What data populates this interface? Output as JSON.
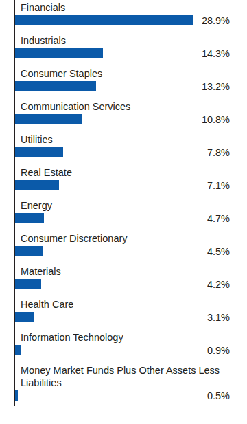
{
  "chart_data": {
    "type": "bar",
    "orientation": "horizontal",
    "categories": [
      "Financials",
      "Industrials",
      "Consumer Staples",
      "Communication Services",
      "Utilities",
      "Real Estate",
      "Energy",
      "Consumer Discretionary",
      "Materials",
      "Health Care",
      "Information Technology",
      "Money Market Funds Plus Other Assets Less Liabilities"
    ],
    "values": [
      28.9,
      14.3,
      13.2,
      10.8,
      7.8,
      7.1,
      4.7,
      4.5,
      4.2,
      3.1,
      0.9,
      0.5
    ],
    "value_labels": [
      "28.9%",
      "14.3%",
      "13.2%",
      "10.8%",
      "7.8%",
      "7.1%",
      "4.7%",
      "4.5%",
      "4.2%",
      "3.1%",
      "0.9%",
      "0.5%"
    ],
    "color": "#0b5aa9",
    "xlim": [
      0,
      30
    ],
    "data_labels": true,
    "tick_labels": false,
    "grid": false
  }
}
